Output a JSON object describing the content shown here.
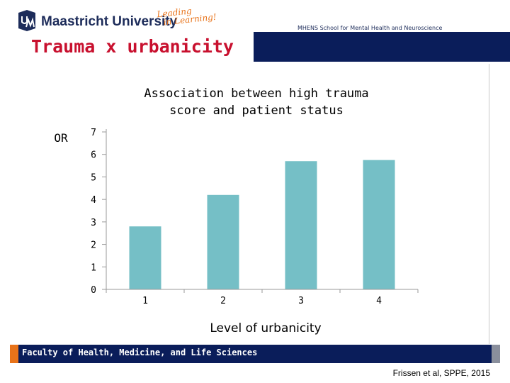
{
  "header": {
    "university": "Maastricht University",
    "slogan_line1": "Leading",
    "slogan_line2": "in Learning!",
    "school": "MHENS School for Mental Health and Neuroscience",
    "slide_title": "Trauma x urbanicity"
  },
  "chart_data": {
    "type": "bar",
    "title": "Association between high trauma score and patient status",
    "title_lines": [
      "Association between high trauma",
      "score and patient status"
    ],
    "ylabel": "OR",
    "xlabel": "Level of urbanicity",
    "categories": [
      "1",
      "2",
      "3",
      "4"
    ],
    "values": [
      2.8,
      4.2,
      5.7,
      5.75
    ],
    "ylim": [
      0,
      7
    ],
    "yticks": [
      "0",
      "1",
      "2",
      "3",
      "4",
      "5",
      "6",
      "7"
    ],
    "bar_color": "#75bfc6",
    "grid": false,
    "legend": "none"
  },
  "footer": {
    "faculty": "Faculty of Health, Medicine, and Life Sciences",
    "citation": "Frissen et al, SPPE, 2015"
  },
  "colors": {
    "navy": "#0a1d5a",
    "accent_red": "#c8102e",
    "accent_orange": "#e8731a"
  }
}
